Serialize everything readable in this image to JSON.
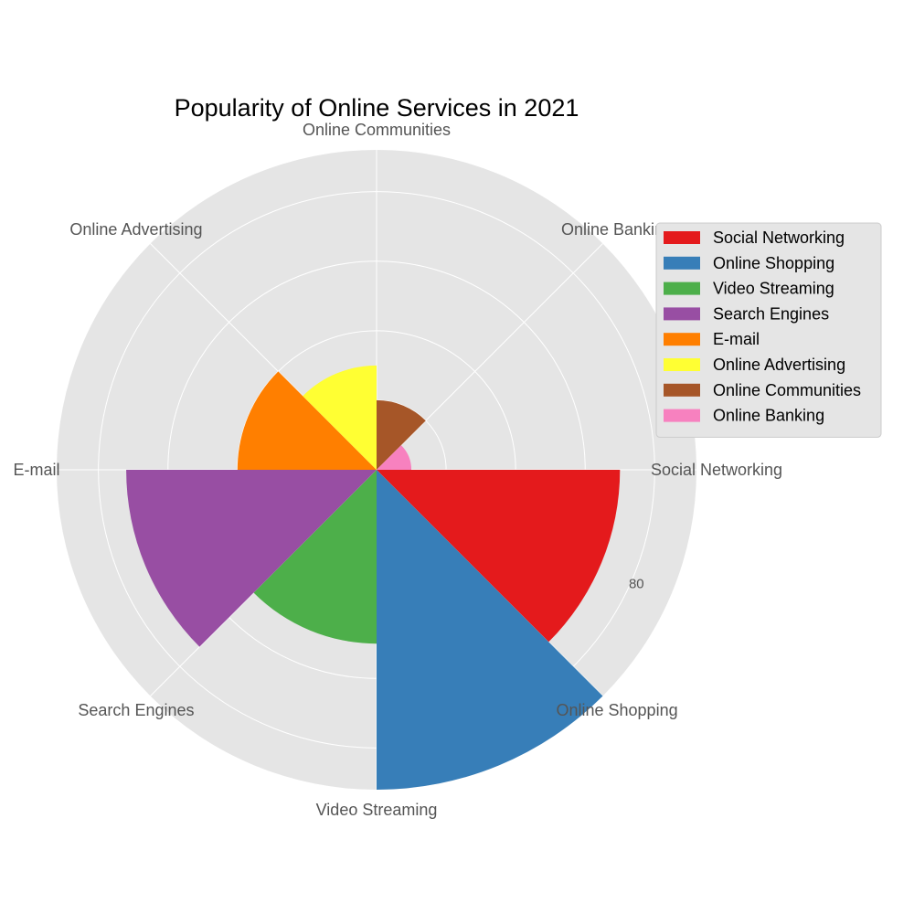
{
  "chart_data": {
    "type": "polar-bar",
    "title": "Popularity of Online Services in 2021",
    "categories": [
      "Social Networking",
      "Online Shopping",
      "Video Streaming",
      "Search Engines",
      "E-mail",
      "Online Advertising",
      "Online Communities",
      "Online Banking"
    ],
    "values": [
      70,
      92,
      50,
      72,
      40,
      30,
      20,
      10
    ],
    "colors": [
      "#e41a1c",
      "#377eb8",
      "#4daf4a",
      "#984ea3",
      "#ff7f00",
      "#ffff33",
      "#a65628",
      "#f781bf"
    ],
    "r_ticks": [
      20,
      40,
      60,
      80
    ],
    "r_tick_labels": [
      "",
      "",
      "",
      "80"
    ],
    "r_max": 92,
    "grid": true,
    "legend_position": "right",
    "background_color": "#e5e5e5",
    "grid_color": "#ffffff"
  }
}
